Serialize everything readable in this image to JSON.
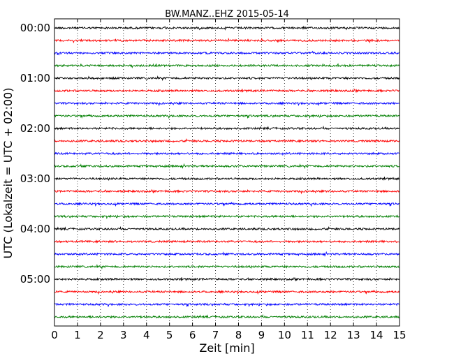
{
  "chart_data": {
    "type": "line",
    "title": "BW.MANZ..EHZ 2015-05-14",
    "xlabel": "Zeit  [min]",
    "ylabel": "UTC (Lokalzeit = UTC + 02:00)",
    "xlim": [
      0,
      15
    ],
    "x_ticks": [
      0,
      1,
      2,
      3,
      4,
      5,
      6,
      7,
      8,
      9,
      10,
      11,
      12,
      13,
      14,
      15
    ],
    "y_tick_labels": [
      "00:00",
      "01:00",
      "02:00",
      "03:00",
      "04:00",
      "05:00"
    ],
    "y_tick_hours": [
      0,
      1,
      2,
      3,
      4,
      5
    ],
    "grid": {
      "x": "dotted",
      "y": "none"
    },
    "trace_minutes": 15,
    "traces_start_hour": 0,
    "trace_count": 24,
    "colors": [
      "#000000",
      "#ff0000",
      "#0000ff",
      "#007f00"
    ]
  }
}
